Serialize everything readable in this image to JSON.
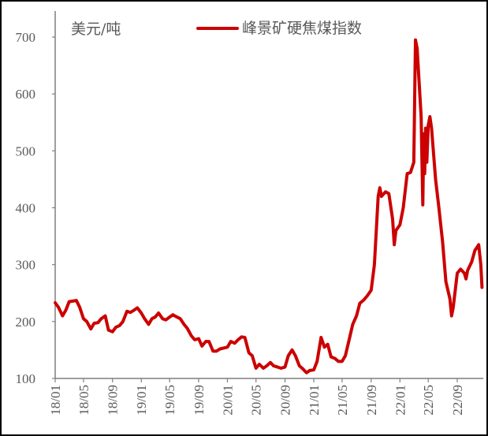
{
  "chart_data": {
    "type": "line",
    "unit_label": "美元/吨",
    "legend": {
      "placement": "top",
      "entries": [
        "峰景矿硬焦煤指数"
      ]
    },
    "ylim": [
      100,
      700
    ],
    "yticks": [
      100,
      200,
      300,
      400,
      500,
      600,
      700
    ],
    "xticks": [
      "18/01",
      "18/05",
      "18/09",
      "19/01",
      "19/05",
      "19/09",
      "20/01",
      "20/05",
      "20/09",
      "21/01",
      "21/05",
      "21/09",
      "22/01",
      "22/05",
      "22/09"
    ],
    "xtick_dates": [
      "2018-01-01",
      "2018-05-01",
      "2018-09-01",
      "2019-01-01",
      "2019-05-01",
      "2019-09-01",
      "2020-01-01",
      "2020-05-01",
      "2020-09-01",
      "2021-01-01",
      "2021-05-01",
      "2021-09-01",
      "2022-01-01",
      "2022-05-01",
      "2022-09-01"
    ],
    "grid": false,
    "colors": {
      "series": "#cc0000",
      "axis": "#7f7f7f",
      "text": "#595959"
    },
    "series": [
      {
        "name": "峰景矿硬焦煤指数",
        "points": [
          [
            "2018-01-01",
            233
          ],
          [
            "2018-01-15",
            225
          ],
          [
            "2018-02-01",
            210
          ],
          [
            "2018-02-15",
            220
          ],
          [
            "2018-03-01",
            235
          ],
          [
            "2018-04-01",
            237
          ],
          [
            "2018-04-15",
            225
          ],
          [
            "2018-05-01",
            205
          ],
          [
            "2018-05-15",
            200
          ],
          [
            "2018-06-01",
            187
          ],
          [
            "2018-06-15",
            197
          ],
          [
            "2018-07-01",
            198
          ],
          [
            "2018-07-15",
            205
          ],
          [
            "2018-08-01",
            210
          ],
          [
            "2018-08-15",
            185
          ],
          [
            "2018-09-01",
            182
          ],
          [
            "2018-09-15",
            190
          ],
          [
            "2018-10-01",
            193
          ],
          [
            "2018-10-15",
            200
          ],
          [
            "2018-11-01",
            218
          ],
          [
            "2018-11-15",
            216
          ],
          [
            "2018-12-01",
            220
          ],
          [
            "2018-12-15",
            224
          ],
          [
            "2019-01-01",
            215
          ],
          [
            "2019-01-15",
            205
          ],
          [
            "2019-02-01",
            195
          ],
          [
            "2019-02-15",
            205
          ],
          [
            "2019-03-01",
            208
          ],
          [
            "2019-03-15",
            215
          ],
          [
            "2019-04-01",
            205
          ],
          [
            "2019-04-15",
            203
          ],
          [
            "2019-05-01",
            208
          ],
          [
            "2019-05-15",
            212
          ],
          [
            "2019-06-01",
            208
          ],
          [
            "2019-06-15",
            205
          ],
          [
            "2019-07-01",
            195
          ],
          [
            "2019-07-15",
            188
          ],
          [
            "2019-08-01",
            175
          ],
          [
            "2019-08-15",
            168
          ],
          [
            "2019-09-01",
            170
          ],
          [
            "2019-09-15",
            157
          ],
          [
            "2019-10-01",
            165
          ],
          [
            "2019-10-15",
            165
          ],
          [
            "2019-11-01",
            148
          ],
          [
            "2019-11-15",
            148
          ],
          [
            "2019-12-01",
            152
          ],
          [
            "2020-01-01",
            155
          ],
          [
            "2020-01-15",
            165
          ],
          [
            "2020-02-01",
            162
          ],
          [
            "2020-02-15",
            168
          ],
          [
            "2020-03-01",
            173
          ],
          [
            "2020-03-15",
            172
          ],
          [
            "2020-04-01",
            145
          ],
          [
            "2020-04-15",
            140
          ],
          [
            "2020-05-01",
            118
          ],
          [
            "2020-05-15",
            125
          ],
          [
            "2020-06-01",
            118
          ],
          [
            "2020-06-15",
            122
          ],
          [
            "2020-07-01",
            128
          ],
          [
            "2020-07-15",
            122
          ],
          [
            "2020-08-01",
            120
          ],
          [
            "2020-08-15",
            118
          ],
          [
            "2020-09-01",
            120
          ],
          [
            "2020-09-15",
            140
          ],
          [
            "2020-10-01",
            150
          ],
          [
            "2020-10-15",
            140
          ],
          [
            "2020-11-01",
            122
          ],
          [
            "2020-11-15",
            117
          ],
          [
            "2020-12-01",
            110
          ],
          [
            "2020-12-15",
            114
          ],
          [
            "2021-01-01",
            115
          ],
          [
            "2021-01-15",
            130
          ],
          [
            "2021-02-01",
            172
          ],
          [
            "2021-02-15",
            155
          ],
          [
            "2021-03-01",
            160
          ],
          [
            "2021-03-15",
            138
          ],
          [
            "2021-04-01",
            135
          ],
          [
            "2021-04-15",
            130
          ],
          [
            "2021-05-01",
            130
          ],
          [
            "2021-05-15",
            140
          ],
          [
            "2021-06-01",
            170
          ],
          [
            "2021-06-15",
            195
          ],
          [
            "2021-07-01",
            210
          ],
          [
            "2021-07-15",
            232
          ],
          [
            "2021-08-01",
            238
          ],
          [
            "2021-08-15",
            245
          ],
          [
            "2021-09-01",
            255
          ],
          [
            "2021-09-15",
            300
          ],
          [
            "2021-10-01",
            420
          ],
          [
            "2021-10-08",
            435
          ],
          [
            "2021-10-15",
            420
          ],
          [
            "2021-11-01",
            428
          ],
          [
            "2021-11-15",
            425
          ],
          [
            "2021-12-01",
            380
          ],
          [
            "2021-12-08",
            335
          ],
          [
            "2021-12-15",
            360
          ],
          [
            "2022-01-01",
            370
          ],
          [
            "2022-01-15",
            400
          ],
          [
            "2022-02-01",
            460
          ],
          [
            "2022-02-15",
            462
          ],
          [
            "2022-03-01",
            480
          ],
          [
            "2022-03-08",
            695
          ],
          [
            "2022-03-15",
            680
          ],
          [
            "2022-04-01",
            560
          ],
          [
            "2022-04-08",
            405
          ],
          [
            "2022-04-12",
            530
          ],
          [
            "2022-04-16",
            460
          ],
          [
            "2022-04-20",
            540
          ],
          [
            "2022-04-25",
            480
          ],
          [
            "2022-05-01",
            545
          ],
          [
            "2022-05-08",
            560
          ],
          [
            "2022-05-15",
            540
          ],
          [
            "2022-06-01",
            450
          ],
          [
            "2022-06-15",
            400
          ],
          [
            "2022-07-01",
            340
          ],
          [
            "2022-07-15",
            270
          ],
          [
            "2022-08-01",
            240
          ],
          [
            "2022-08-08",
            210
          ],
          [
            "2022-08-15",
            225
          ],
          [
            "2022-09-01",
            285
          ],
          [
            "2022-09-15",
            292
          ],
          [
            "2022-10-01",
            285
          ],
          [
            "2022-10-08",
            275
          ],
          [
            "2022-10-15",
            290
          ],
          [
            "2022-11-01",
            305
          ],
          [
            "2022-11-15",
            325
          ],
          [
            "2022-12-01",
            335
          ],
          [
            "2022-12-10",
            300
          ],
          [
            "2022-12-15",
            260
          ]
        ]
      }
    ]
  }
}
